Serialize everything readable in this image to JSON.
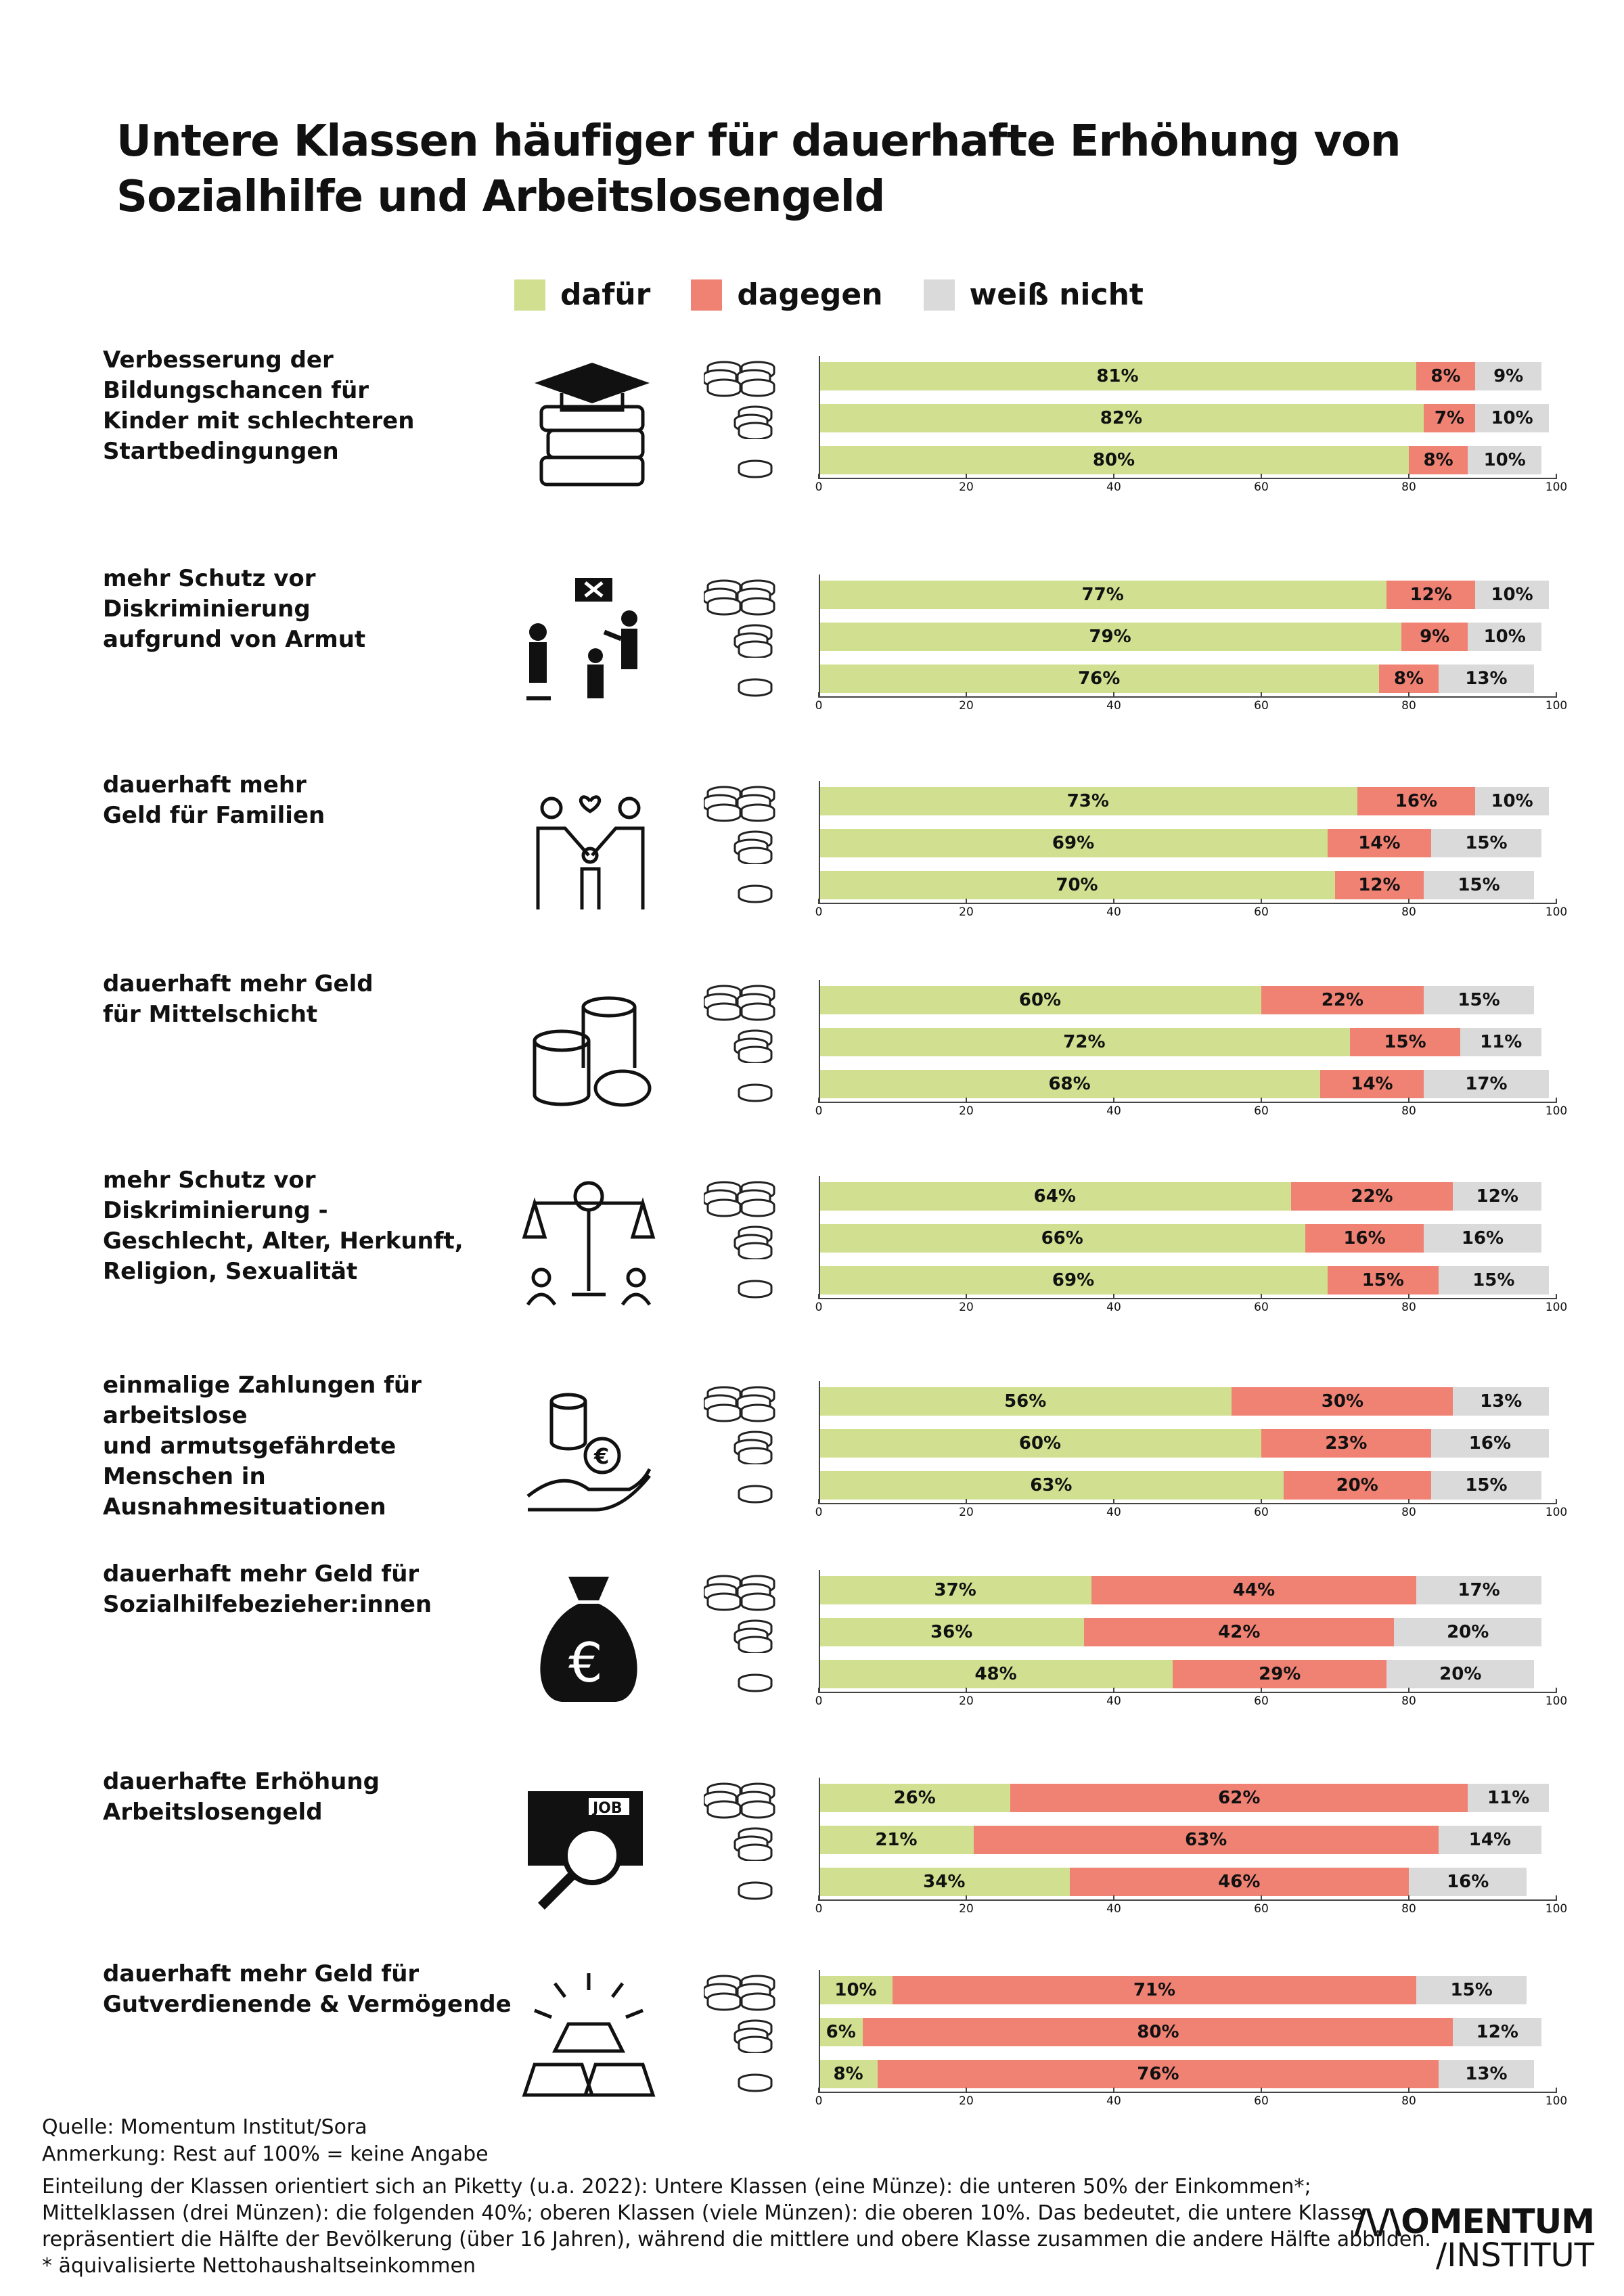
{
  "title": [
    "Untere Klassen häufiger für dauerhafte Erhöhung von",
    "Sozialhilfe und Arbeitslosengeld"
  ],
  "legend": [
    {
      "label": "dafür",
      "color": "#d1df90"
    },
    {
      "label": "dagegen",
      "color": "#f08274"
    },
    {
      "label": "weiß nicht",
      "color": "#dadada"
    }
  ],
  "chart_data": {
    "type": "bar",
    "orientation": "horizontal-stacked",
    "xlim": [
      0,
      100
    ],
    "xticks": [
      "0",
      "20",
      "40",
      "60",
      "80",
      "100"
    ],
    "row_classes": [
      "obere Klassen (viele Münzen)",
      "Mittelklassen (drei Münzen)",
      "Untere Klassen (eine Münze)"
    ],
    "series_names": [
      "dafür",
      "dagegen",
      "weiß nicht"
    ],
    "groups": [
      {
        "label": "Verbesserung der\nBildungschancen für\nKinder mit schlechteren\nStartbedingungen",
        "icon": "graduation-books-icon",
        "rows": [
          [
            81,
            8,
            9
          ],
          [
            82,
            7,
            10
          ],
          [
            80,
            8,
            10
          ]
        ]
      },
      {
        "label": "mehr Schutz vor\nDiskriminierung\naufgrund von Armut",
        "icon": "discrimination-people-icon",
        "rows": [
          [
            77,
            12,
            10
          ],
          [
            79,
            9,
            10
          ],
          [
            76,
            8,
            13
          ]
        ]
      },
      {
        "label": "dauerhaft mehr\nGeld für Familien",
        "icon": "family-icon",
        "rows": [
          [
            73,
            16,
            10
          ],
          [
            69,
            14,
            15
          ],
          [
            70,
            12,
            15
          ]
        ]
      },
      {
        "label": "dauerhaft mehr Geld\nfür Mittelschicht",
        "icon": "coin-stacks-icon",
        "rows": [
          [
            60,
            22,
            15
          ],
          [
            72,
            15,
            11
          ],
          [
            68,
            14,
            17
          ]
        ]
      },
      {
        "label": "mehr Schutz vor Diskriminierung -\nGeschlecht, Alter, Herkunft,\nReligion, Sexualität",
        "icon": "scales-icon",
        "rows": [
          [
            64,
            22,
            12
          ],
          [
            66,
            16,
            16
          ],
          [
            69,
            15,
            15
          ]
        ]
      },
      {
        "label": "einmalige Zahlungen für arbeitslose\nund armutsgefährdete Menschen in\nAusnahmesituationen",
        "icon": "hand-euro-icon",
        "rows": [
          [
            56,
            30,
            13
          ],
          [
            60,
            23,
            16
          ],
          [
            63,
            20,
            15
          ]
        ]
      },
      {
        "label": "dauerhaft mehr Geld für\nSozialhilfebezieher:innen",
        "icon": "euro-moneybag-icon",
        "rows": [
          [
            37,
            44,
            17
          ],
          [
            36,
            42,
            20
          ],
          [
            48,
            29,
            20
          ]
        ]
      },
      {
        "label": "dauerhafte Erhöhung\nArbeitslosengeld",
        "icon": "job-search-icon",
        "rows": [
          [
            26,
            62,
            11
          ],
          [
            21,
            63,
            14
          ],
          [
            34,
            46,
            16
          ]
        ]
      },
      {
        "label": "dauerhaft mehr Geld für\nGutverdienende & Vermögende",
        "icon": "gold-bars-icon",
        "rows": [
          [
            10,
            71,
            15
          ],
          [
            6,
            80,
            12
          ],
          [
            8,
            76,
            13
          ]
        ]
      }
    ]
  },
  "footer": {
    "source": "Quelle: Momentum Institut/Sora",
    "note": "Anmerkung: Rest auf 100% = keine Angabe",
    "lines": [
      "Einteilung der Klassen orientiert sich an Piketty (u.a. 2022): Untere Klassen (eine Münze): die unteren 50% der Einkommen*;",
      "Mittelklassen (drei Münzen): die folgenden 40%; oberen Klassen (viele Münzen): die oberen 10%. Das bedeutet, die untere Klasse",
      "repräsentiert die Hälfte der Bevölkerung (über 16 Jahren), während die mittlere und obere Klasse zusammen die andere Hälfte abbilden.",
      "* äquivalisierte Nettohaushaltseinkommen"
    ]
  },
  "logo": {
    "line1": "/\\/\\OMENTUM",
    "line2": "/INSTITUT"
  }
}
